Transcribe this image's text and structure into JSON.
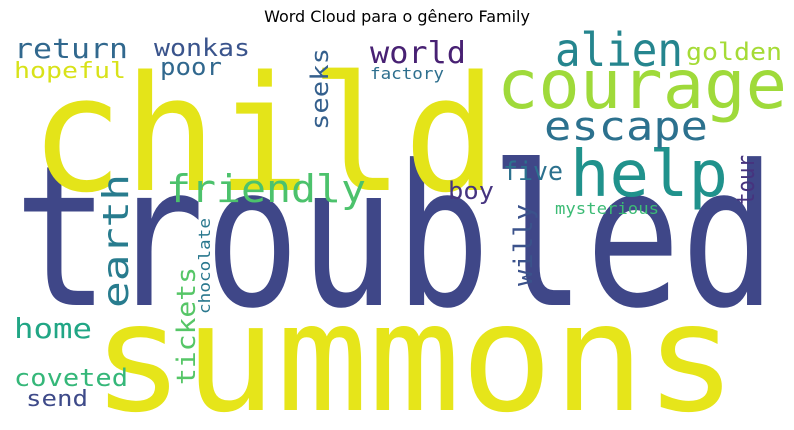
{
  "title": "Word Cloud para o gênero Family",
  "words": [
    {
      "text": "troubled",
      "color": "#3f4788"
    },
    {
      "text": "summons",
      "color": "#e6e51a"
    },
    {
      "text": "child",
      "color": "#e4e419"
    },
    {
      "text": "courage",
      "color": "#9fda3a"
    },
    {
      "text": "help",
      "color": "#20928c"
    },
    {
      "text": "alien",
      "color": "#25858e"
    },
    {
      "text": "escape",
      "color": "#2c718e"
    },
    {
      "text": "friendly",
      "color": "#4cc26c"
    },
    {
      "text": "earth",
      "color": "#287c8e"
    },
    {
      "text": "world",
      "color": "#482173"
    },
    {
      "text": "return",
      "color": "#31688e"
    },
    {
      "text": "hopeful",
      "color": "#d8e219"
    },
    {
      "text": "wonkas",
      "color": "#3a548c"
    },
    {
      "text": "poor",
      "color": "#31688e"
    },
    {
      "text": "seeks",
      "color": "#35608d"
    },
    {
      "text": "golden",
      "color": "#a5db36"
    },
    {
      "text": "factory",
      "color": "#2e6f8e"
    },
    {
      "text": "five",
      "color": "#2c718e"
    },
    {
      "text": "tour",
      "color": "#46337e"
    },
    {
      "text": "boy",
      "color": "#463480"
    },
    {
      "text": "willy",
      "color": "#3b528b"
    },
    {
      "text": "mysterious",
      "color": "#3cbb75"
    },
    {
      "text": "tickets",
      "color": "#56c667"
    },
    {
      "text": "chocolate",
      "color": "#2a788e"
    },
    {
      "text": "home",
      "color": "#21a685"
    },
    {
      "text": "coveted",
      "color": "#35b779"
    },
    {
      "text": "send",
      "color": "#3e4a89"
    }
  ]
}
